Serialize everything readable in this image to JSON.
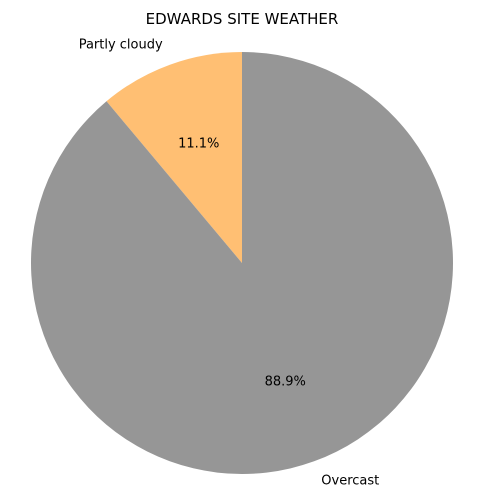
{
  "chart_data": {
    "type": "pie",
    "title": "EDWARDS SITE WEATHER",
    "start_angle": 90,
    "direction": "counterclockwise",
    "slices": [
      {
        "label": "Partly cloudy",
        "value": 11.1,
        "pct_label": "11.1%",
        "color": "#FFBF73"
      },
      {
        "label": "Overcast",
        "value": 88.9,
        "pct_label": "88.9%",
        "color": "#969696"
      }
    ]
  }
}
